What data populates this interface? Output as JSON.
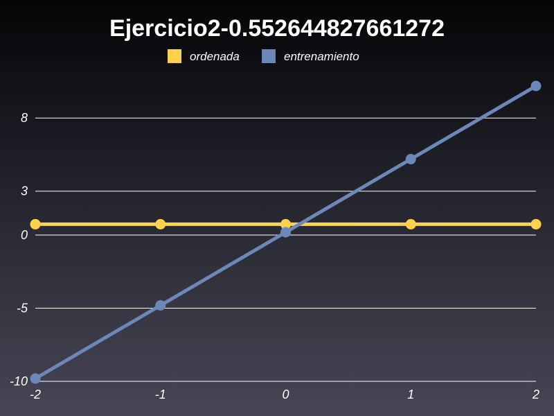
{
  "chart_data": {
    "type": "line",
    "title": "Ejercicio2-0.552644827661272",
    "xlabel": "",
    "ylabel": "",
    "x": [
      -2,
      -1,
      0,
      1,
      2
    ],
    "x_ticks": [
      "-2",
      "-1",
      "0",
      "1",
      "2"
    ],
    "y_ticks": [
      "8",
      "3",
      "0",
      "-5",
      "-10"
    ],
    "y_tick_values": [
      8,
      3,
      0,
      -5,
      -10
    ],
    "xlim": [
      -2,
      2
    ],
    "ylim": [
      -10,
      10
    ],
    "grid": true,
    "legend_position": "top-center",
    "series": [
      {
        "name": "ordenada",
        "color": "#ffd24d",
        "values": [
          0.55,
          0.55,
          0.55,
          0.55,
          0.55
        ]
      },
      {
        "name": "entrenamiento",
        "color": "#6b88b8",
        "values": [
          -10,
          -5,
          0,
          5,
          10
        ]
      }
    ]
  }
}
